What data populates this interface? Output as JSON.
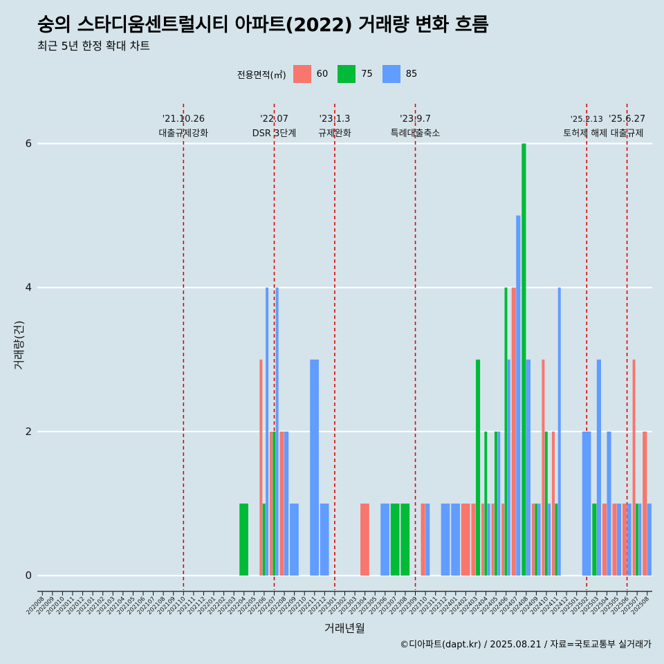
{
  "title": "숭의 스타디움센트럴시티 아파트(2022) 거래량 변화 흐름",
  "subtitle": "최근 5년 한정 확대 차트",
  "caption": "©디아파트(dapt.kr) / 2025.08.21 / 자료=국토교통부 실거래가",
  "legend": {
    "title": "전용면적(㎡)",
    "items": [
      {
        "label": "60",
        "color": "#f8766d"
      },
      {
        "label": "75",
        "color": "#00ba38"
      },
      {
        "label": "85",
        "color": "#619cff"
      }
    ]
  },
  "chart_data": {
    "type": "bar",
    "xlabel": "거래년월",
    "ylabel": "거래량(건)",
    "ylim": [
      -0.2,
      6.6
    ],
    "yticks": [
      0,
      2,
      4,
      6
    ],
    "grid": true,
    "legend_position": "top",
    "categories": [
      "202008",
      "202009",
      "202010",
      "202011",
      "202012",
      "202101",
      "202102",
      "202103",
      "202104",
      "202105",
      "202106",
      "202107",
      "202108",
      "202109",
      "202110",
      "202111",
      "202112",
      "202201",
      "202202",
      "202203",
      "202204",
      "202205",
      "202206",
      "202207",
      "202208",
      "202209",
      "202210",
      "202211",
      "202212",
      "202301",
      "202302",
      "202303",
      "202304",
      "202305",
      "202306",
      "202307",
      "202308",
      "202309",
      "202310",
      "202311",
      "202312",
      "202401",
      "202402",
      "202403",
      "202404",
      "202405",
      "202406",
      "202407",
      "202408",
      "202409",
      "202410",
      "202411",
      "202412",
      "202501",
      "202502",
      "202503",
      "202504",
      "202505",
      "202506",
      "202507",
      "202508"
    ],
    "series": [
      {
        "name": "60",
        "color": "#f8766d",
        "values": [
          0,
          0,
          0,
          0,
          0,
          0,
          0,
          0,
          0,
          0,
          0,
          0,
          0,
          0,
          0,
          0,
          0,
          0,
          0,
          0,
          0,
          0,
          3,
          2,
          2,
          0,
          0,
          0,
          0,
          0,
          0,
          0,
          1,
          0,
          0,
          0,
          0,
          0,
          1,
          0,
          0,
          0,
          1,
          1,
          1,
          1,
          1,
          4,
          0,
          1,
          3,
          2,
          0,
          0,
          0,
          0,
          1,
          1,
          1,
          3,
          2
        ]
      },
      {
        "name": "75",
        "color": "#00ba38",
        "values": [
          0,
          0,
          0,
          0,
          0,
          0,
          0,
          0,
          0,
          0,
          0,
          0,
          0,
          0,
          0,
          0,
          0,
          0,
          0,
          0,
          1,
          0,
          1,
          2,
          0,
          0,
          0,
          0,
          0,
          0,
          0,
          0,
          0,
          0,
          0,
          1,
          1,
          0,
          0,
          0,
          0,
          0,
          0,
          3,
          2,
          2,
          4,
          0,
          6,
          1,
          2,
          1,
          0,
          0,
          0,
          1,
          0,
          0,
          0,
          1,
          0
        ]
      },
      {
        "name": "85",
        "color": "#619cff",
        "values": [
          0,
          0,
          0,
          0,
          0,
          0,
          0,
          0,
          0,
          0,
          0,
          0,
          0,
          0,
          0,
          0,
          0,
          0,
          0,
          0,
          0,
          0,
          4,
          4,
          2,
          1,
          0,
          3,
          1,
          0,
          0,
          0,
          0,
          0,
          1,
          0,
          0,
          0,
          1,
          0,
          1,
          1,
          0,
          0,
          1,
          2,
          3,
          5,
          3,
          1,
          1,
          4,
          0,
          0,
          2,
          3,
          2,
          1,
          1,
          1,
          1
        ]
      }
    ],
    "events": [
      {
        "category": "202110",
        "date": "'21.10.26",
        "label": "대출규제강화"
      },
      {
        "category": "202207",
        "date": "'22.07",
        "label": "DSR 3단계"
      },
      {
        "category": "202301",
        "date": "'23.1.3",
        "label": "규제완화"
      },
      {
        "category": "202309",
        "date": "'23.9.7",
        "label": "특례대출축소"
      },
      {
        "category": "202502",
        "date": "'25.2.13",
        "label": "토허제 해제"
      },
      {
        "category": "202506",
        "date": "'25.6.27",
        "label": "대출규제"
      }
    ]
  }
}
